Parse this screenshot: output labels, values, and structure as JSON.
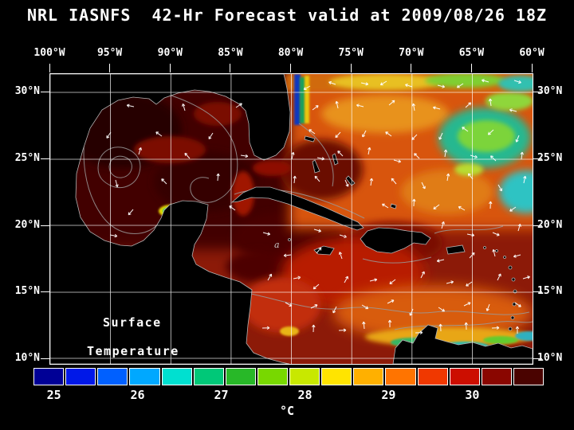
{
  "title": "NRL IASNFS  42-Hr Forecast valid at 2009/08/26 18Z",
  "map": {
    "lon_labels": [
      "100°W",
      "95°W",
      "90°W",
      "85°W",
      "80°W",
      "75°W",
      "70°W",
      "65°W",
      "60°W"
    ],
    "lat_labels": [
      "30°N",
      "25°N",
      "20°N",
      "15°N",
      "10°N"
    ],
    "overlay_labels": [
      "Surface",
      "Temperature"
    ],
    "annotation": "a"
  },
  "colorbar": {
    "unit": "°C",
    "labels": [
      "25",
      "26",
      "27",
      "28",
      "29",
      "30"
    ],
    "segments": [
      "#000096",
      "#0018e8",
      "#0060ff",
      "#00a8ff",
      "#00e0d0",
      "#00c878",
      "#28b828",
      "#78d800",
      "#c8e800",
      "#ffe400",
      "#ffb000",
      "#ff7400",
      "#f03800",
      "#cc0e00",
      "#8a0600",
      "#4a0300"
    ]
  },
  "colors": {
    "background": "#000000",
    "grid": "#ffffff",
    "coastline": "#b4b4b4",
    "contour": "#9a9a9a",
    "vector": "#ffffff",
    "text": "#ffffff"
  }
}
